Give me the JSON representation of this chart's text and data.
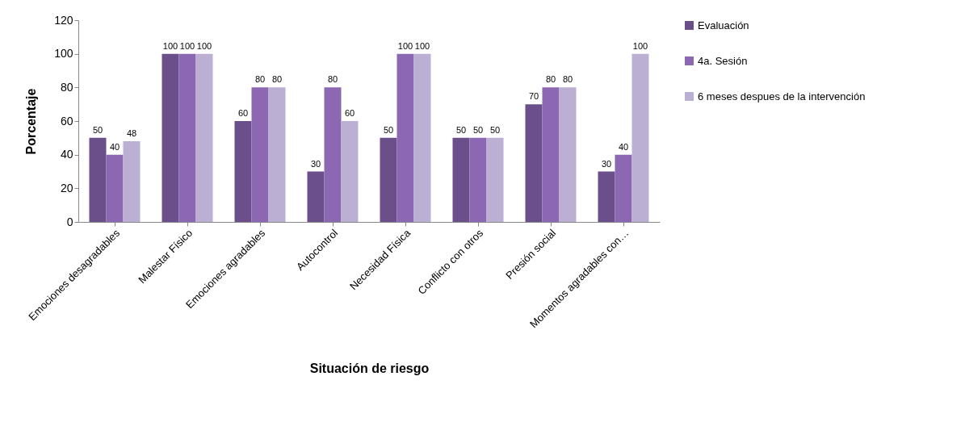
{
  "chart_data": {
    "type": "bar",
    "xlabel": "Situación de riesgo",
    "ylabel": "Porcentaje",
    "categories": [
      "Emociones desagradables",
      "Malestar Físico",
      "Emociones agradables",
      "Autocontrol",
      "Necesidad Física",
      "Conflicto con otros",
      "Presión social",
      "Momentos agradables con…"
    ],
    "series": [
      {
        "name": "Evaluación",
        "color": "#6b4f8a",
        "values": [
          50,
          100,
          60,
          30,
          50,
          50,
          70,
          30
        ]
      },
      {
        "name": "4a. Sesión",
        "color": "#8c68b3",
        "values": [
          40,
          100,
          80,
          80,
          100,
          50,
          80,
          40
        ]
      },
      {
        "name": "6 meses despues de la intervención",
        "color": "#bbafd3",
        "values": [
          48,
          100,
          80,
          60,
          100,
          50,
          80,
          100
        ]
      }
    ],
    "ylim": [
      0,
      120
    ],
    "yticks": [
      0,
      20,
      40,
      60,
      80,
      100,
      120
    ],
    "grid": false,
    "legend": "right",
    "data_labels": true
  }
}
